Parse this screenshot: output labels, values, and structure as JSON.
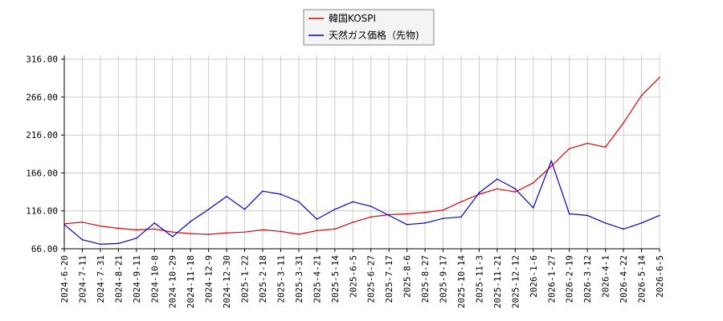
{
  "chart_data": {
    "type": "line",
    "title": "",
    "xlabel": "",
    "ylabel": "",
    "ylim": [
      66,
      321
    ],
    "y_ticks": [
      "316.00",
      "266.00",
      "216.00",
      "166.00",
      "116.00",
      "66.00"
    ],
    "y_tick_values": [
      316,
      266,
      216,
      166,
      116,
      66
    ],
    "x_ticks": [
      "2024-6-20",
      "2024-7-11",
      "2024-7-31",
      "2024-8-21",
      "2024-9-11",
      "2024-10-8",
      "2024-10-29",
      "2024-11-18",
      "2024-12-9",
      "2024-12-30",
      "2025-1-22",
      "2025-2-18",
      "2025-3-11",
      "2025-3-31",
      "2025-4-21",
      "2025-5-14",
      "2025-6-5",
      "2025-6-27",
      "2025-7-17",
      "2025-8-6",
      "2025-8-27",
      "2025-9-17",
      "2025-10-14",
      "2025-11-3",
      "2025-11-21",
      "2025-12-12",
      "2026-1-6",
      "2026-1-27",
      "2026-2-19",
      "2026-3-12",
      "2026-4-1",
      "2026-4-22",
      "2026-5-14",
      "2026-6-5"
    ],
    "grid": true,
    "legend_position": "top-center",
    "series": [
      {
        "name": "韓国KOSPI",
        "color": "#dd0000",
        "x": [
          "2024-6-20",
          "2024-7-11",
          "2024-7-31",
          "2024-8-21",
          "2024-9-11",
          "2024-10-8",
          "2024-10-29",
          "2024-11-18",
          "2024-12-9",
          "2024-12-30",
          "2025-1-22",
          "2025-2-18",
          "2025-3-11",
          "2025-3-31",
          "2025-4-21",
          "2025-5-14",
          "2025-6-5",
          "2025-6-27",
          "2025-7-17",
          "2025-8-6",
          "2025-8-27",
          "2025-9-17",
          "2025-10-14",
          "2025-11-3",
          "2025-11-21",
          "2025-12-12",
          "2026-1-6",
          "2026-1-27",
          "2026-2-19",
          "2026-3-12",
          "2026-4-1",
          "2026-4-22",
          "2026-5-14",
          "2026-6-5"
        ],
        "values": [
          99,
          101,
          96,
          93,
          91,
          92,
          88,
          86,
          85,
          87,
          88,
          91,
          89,
          85,
          90,
          92,
          101,
          108,
          111,
          112,
          114,
          117,
          128,
          138,
          145,
          141,
          153,
          175,
          198,
          205,
          200,
          232,
          268,
          292
        ]
      },
      {
        "name": "天然ガス価格（先物)",
        "color": "#0000cc",
        "x": [
          "2024-6-20",
          "2024-7-11",
          "2024-7-31",
          "2024-8-21",
          "2024-9-11",
          "2024-10-8",
          "2024-10-29",
          "2024-11-18",
          "2024-12-9",
          "2024-12-30",
          "2025-1-22",
          "2025-2-18",
          "2025-3-11",
          "2025-3-31",
          "2025-4-21",
          "2025-5-14",
          "2025-6-5",
          "2025-6-27",
          "2025-7-17",
          "2025-8-6",
          "2025-8-27",
          "2025-9-17",
          "2025-10-14",
          "2025-11-3",
          "2025-11-21",
          "2025-12-12",
          "2026-1-6",
          "2026-1-27",
          "2026-2-19",
          "2026-3-12",
          "2026-4-1",
          "2026-4-22",
          "2026-5-14",
          "2026-6-5"
        ],
        "values": [
          98,
          78,
          72,
          73,
          80,
          100,
          82,
          102,
          118,
          135,
          118,
          142,
          138,
          128,
          105,
          118,
          128,
          122,
          110,
          98,
          100,
          106,
          108,
          140,
          158,
          145,
          120,
          182,
          112,
          110,
          100,
          92,
          100,
          110
        ]
      }
    ]
  }
}
